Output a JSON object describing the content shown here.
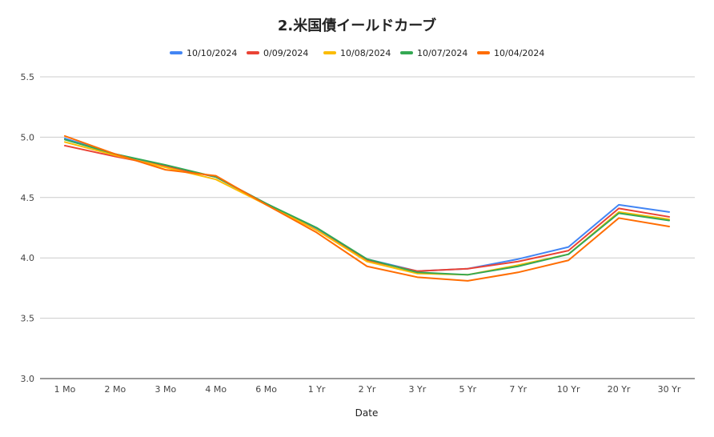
{
  "chart_data": {
    "type": "line",
    "title": "2.米国債イールドカーブ",
    "xlabel": "Date",
    "ylabel": "",
    "categories": [
      "1 Mo",
      "2 Mo",
      "3 Mo",
      "4 Mo",
      "6 Mo",
      "1 Yr",
      "2 Yr",
      "3 Yr",
      "5 Yr",
      "7 Yr",
      "10 Yr",
      "20 Yr",
      "30 Yr"
    ],
    "ylim": [
      3.0,
      5.5
    ],
    "yticks": [
      3.0,
      3.5,
      4.0,
      4.5,
      5.0,
      5.5
    ],
    "grid": true,
    "legend_position": "top",
    "series": [
      {
        "name": "10/10/2024",
        "color": "#4285F4",
        "values": [
          4.99,
          4.86,
          4.76,
          4.67,
          4.45,
          4.24,
          3.99,
          3.89,
          3.91,
          3.99,
          4.09,
          4.44,
          4.38
        ]
      },
      {
        "name": "0/09/2024",
        "color": "#EA4335",
        "values": [
          4.93,
          4.84,
          4.76,
          4.67,
          4.45,
          4.23,
          3.98,
          3.89,
          3.91,
          3.97,
          4.06,
          4.41,
          4.34
        ]
      },
      {
        "name": "10/08/2024",
        "color": "#FBBC04",
        "values": [
          4.96,
          4.85,
          4.75,
          4.65,
          4.44,
          4.23,
          3.97,
          3.87,
          3.86,
          3.94,
          4.03,
          4.38,
          4.32
        ]
      },
      {
        "name": "10/07/2024",
        "color": "#34A853",
        "values": [
          4.98,
          4.86,
          4.77,
          4.67,
          4.45,
          4.25,
          3.99,
          3.88,
          3.86,
          3.93,
          4.03,
          4.37,
          4.31
        ]
      },
      {
        "name": "10/04/2024",
        "color": "#FF6D01",
        "values": [
          5.01,
          4.86,
          4.73,
          4.68,
          4.44,
          4.21,
          3.93,
          3.84,
          3.81,
          3.88,
          3.98,
          4.33,
          4.26
        ]
      }
    ]
  }
}
